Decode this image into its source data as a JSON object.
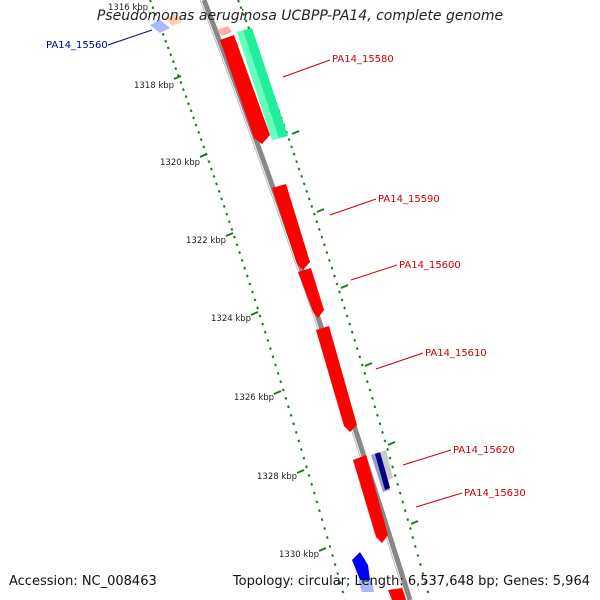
{
  "title": "Pseudomonas aeruginosa UCBPP-PA14, complete genome",
  "footer": {
    "accession": "Accession: NC_008463",
    "topology": "Topology: circular; Length: 6,537,648 bp; Genes: 5,964"
  },
  "colors": {
    "backbone": "#888888",
    "tick": "#1a7a1a",
    "forward_gene": "#ff0000",
    "reverse_gene": "#0000ff",
    "rna_gene": "#22ee99",
    "label_forward": "#cc0000",
    "label_reverse": "#000099"
  },
  "scale_labels": [
    "1316 kbp",
    "1318 kbp",
    "1320 kbp",
    "1322 kbp",
    "1324 kbp",
    "1326 kbp",
    "1328 kbp",
    "1330 kbp"
  ],
  "gene_labels": [
    {
      "name": "PA14_15560",
      "strand": "reverse"
    },
    {
      "name": "PA14_15580",
      "strand": "forward"
    },
    {
      "name": "PA14_15590",
      "strand": "forward"
    },
    {
      "name": "PA14_15600",
      "strand": "forward"
    },
    {
      "name": "PA14_15610",
      "strand": "forward"
    },
    {
      "name": "PA14_15620",
      "strand": "forward"
    },
    {
      "name": "PA14_15630",
      "strand": "forward"
    }
  ]
}
